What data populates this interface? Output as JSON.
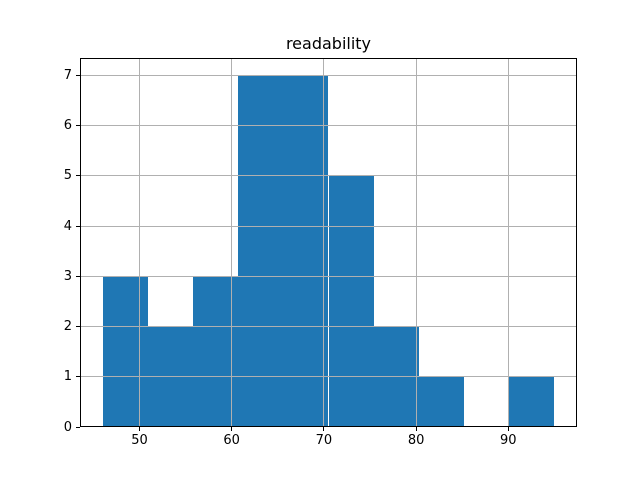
{
  "chart_data": {
    "type": "bar",
    "subtype": "histogram",
    "title": "readability",
    "xlabel": "",
    "ylabel": "",
    "bin_edges": [
      46.0,
      50.9,
      55.8,
      60.7,
      65.6,
      70.5,
      75.4,
      80.3,
      85.2,
      90.1,
      95.0
    ],
    "counts": [
      3,
      2,
      3,
      7,
      7,
      5,
      2,
      1,
      0,
      1
    ],
    "xticks": [
      50,
      60,
      70,
      80,
      90
    ],
    "yticks": [
      0,
      1,
      2,
      3,
      4,
      5,
      6,
      7
    ],
    "xlim": [
      43.55,
      97.45
    ],
    "ylim": [
      0,
      7.35
    ],
    "grid": true,
    "grid_on_top": true,
    "legend": false,
    "bar_color": "#1f77b4",
    "grid_color": "#b0b0b0",
    "axis_color": "#000000",
    "background_color": "#ffffff"
  }
}
